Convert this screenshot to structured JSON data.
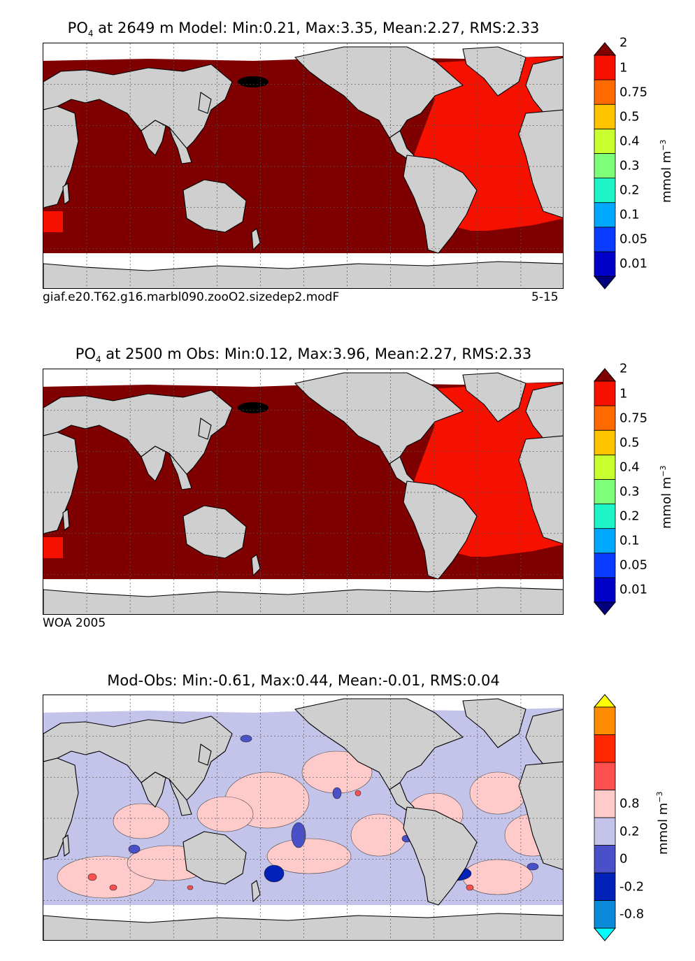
{
  "chart_data": [
    {
      "type": "heatmap",
      "title_var": "PO",
      "title_sub": "4",
      "title_rest": " at 2649 m Model: Min:0.21, Max:3.35, Mean:2.27, RMS:2.33",
      "stats": {
        "min": 0.21,
        "max": 3.35,
        "mean": 2.27,
        "rms": 2.33
      },
      "depth": "2649 m",
      "caption_left": "giaf.e20.T62.g16.marbl090.zooO2.sizedep2.modF",
      "caption_right": "5-15",
      "colorbar": {
        "levels": [
          "0.01",
          "0.05",
          "0.1",
          "0.2",
          "0.3",
          "0.4",
          "0.5",
          "0.75",
          "1",
          "2"
        ],
        "colors": [
          "#00007f",
          "#0000c8",
          "#0a3cff",
          "#00a8ff",
          "#1ef5c8",
          "#7dff7a",
          "#c8ff2e",
          "#ffc400",
          "#ff6a00",
          "#f51000",
          "#7f0000"
        ],
        "units": "mmol m",
        "units_sup": "−3"
      },
      "regions": {
        "pacific": "#7f0000",
        "indian": "#7f0000",
        "southern": "#7f0000",
        "atlantic": "#f51000",
        "arctic": "#f51000"
      }
    },
    {
      "type": "heatmap",
      "title_var": "PO",
      "title_sub": "4",
      "title_rest": " at 2500 m Obs: Min:0.12, Max:3.96, Mean:2.27, RMS:2.33",
      "stats": {
        "min": 0.12,
        "max": 3.96,
        "mean": 2.27,
        "rms": 2.33
      },
      "depth": "2500 m",
      "caption_left": "WOA 2005",
      "colorbar": {
        "levels": [
          "0.01",
          "0.05",
          "0.1",
          "0.2",
          "0.3",
          "0.4",
          "0.5",
          "0.75",
          "1",
          "2"
        ],
        "colors": [
          "#00007f",
          "#0000c8",
          "#0a3cff",
          "#00a8ff",
          "#1ef5c8",
          "#7dff7a",
          "#c8ff2e",
          "#ffc400",
          "#ff6a00",
          "#f51000",
          "#7f0000"
        ],
        "units": "mmol m",
        "units_sup": "−3"
      },
      "regions": {
        "pacific": "#7f0000",
        "indian": "#7f0000",
        "southern": "#7f0000",
        "atlantic": "#f51000",
        "arctic": "#f51000"
      }
    },
    {
      "type": "heatmap",
      "title_text": "Mod-Obs: Min:-0.61, Max:0.44, Mean:-0.01, RMS:0.04",
      "stats": {
        "min": -0.61,
        "max": 0.44,
        "mean": -0.01,
        "rms": 0.04
      },
      "colorbar": {
        "levels": [
          "-0.8",
          "-0.2",
          "0",
          "0.2",
          "0.8"
        ],
        "colors": [
          "#00ffff",
          "#0a8ad8",
          "#0022b8",
          "#4a50c8",
          "#c4c4ea",
          "#ffcaca",
          "#ff5050",
          "#ff2800",
          "#ff8c00",
          "#ffff00"
        ],
        "units": "mmol m",
        "units_sup": "−3"
      }
    }
  ]
}
